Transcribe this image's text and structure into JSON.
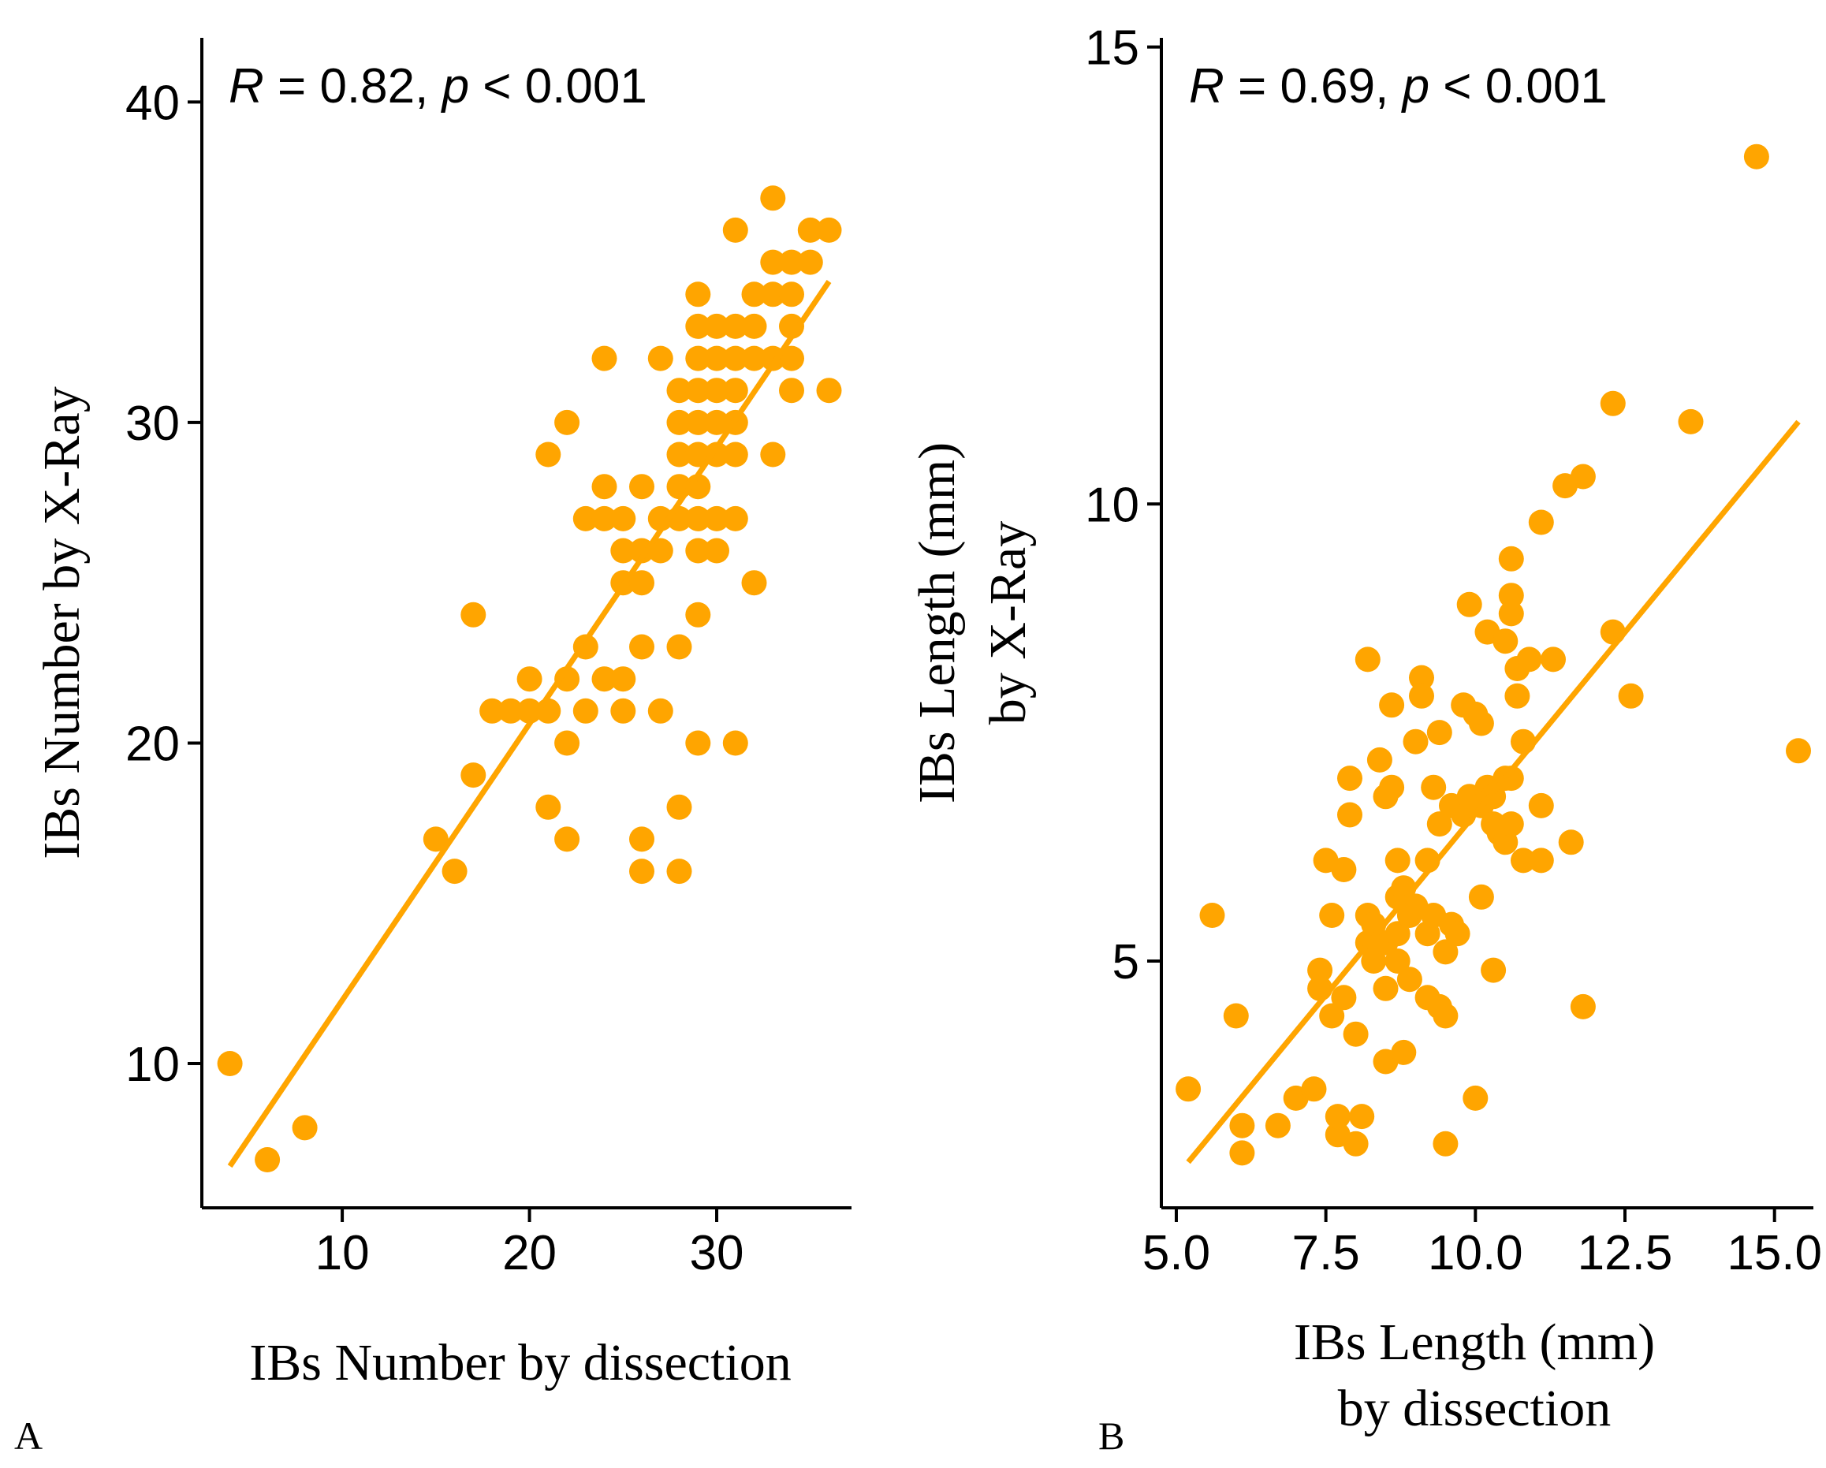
{
  "chart_data": [
    {
      "panel": "A",
      "type": "scatter",
      "xlabel": "IBs Number by dissection",
      "ylabel": "IBs Number by X-Ray",
      "annotation": {
        "r_label": "R",
        "r_text": " = 0.82, ",
        "p_label": "p",
        "p_text": " < 0.001"
      },
      "xlim": [
        2.5,
        37.2
      ],
      "ylim": [
        5.5,
        42
      ],
      "xticks": [
        10,
        20,
        30
      ],
      "yticks": [
        10,
        20,
        30,
        40
      ],
      "point_color": "#FFA500",
      "line_color": "#FFA500",
      "fit_line": {
        "x": [
          4,
          36
        ],
        "y": [
          6.8,
          34.4
        ]
      },
      "points": [
        [
          4,
          10
        ],
        [
          6,
          7
        ],
        [
          8,
          8
        ],
        [
          15,
          17
        ],
        [
          16,
          16
        ],
        [
          17,
          19
        ],
        [
          17,
          24
        ],
        [
          18,
          21
        ],
        [
          19,
          21
        ],
        [
          20,
          21
        ],
        [
          20,
          22
        ],
        [
          21,
          21
        ],
        [
          21,
          29
        ],
        [
          21,
          18
        ],
        [
          22,
          22
        ],
        [
          22,
          20
        ],
        [
          22,
          17
        ],
        [
          22,
          30
        ],
        [
          23,
          21
        ],
        [
          23,
          23
        ],
        [
          23,
          27
        ],
        [
          24,
          22
        ],
        [
          24,
          27
        ],
        [
          24,
          28
        ],
        [
          24,
          32
        ],
        [
          25,
          22
        ],
        [
          25,
          26
        ],
        [
          25,
          25
        ],
        [
          25,
          21
        ],
        [
          25,
          27
        ],
        [
          26,
          26
        ],
        [
          26,
          25
        ],
        [
          26,
          23
        ],
        [
          26,
          28
        ],
        [
          26,
          17
        ],
        [
          26,
          16
        ],
        [
          27,
          26
        ],
        [
          27,
          27
        ],
        [
          27,
          21
        ],
        [
          27,
          32
        ],
        [
          28,
          30
        ],
        [
          28,
          31
        ],
        [
          28,
          29
        ],
        [
          28,
          27
        ],
        [
          28,
          28
        ],
        [
          28,
          23
        ],
        [
          28,
          18
        ],
        [
          28,
          16
        ],
        [
          29,
          34
        ],
        [
          29,
          33
        ],
        [
          29,
          32
        ],
        [
          29,
          31
        ],
        [
          29,
          30
        ],
        [
          29,
          29
        ],
        [
          29,
          28
        ],
        [
          29,
          27
        ],
        [
          29,
          26
        ],
        [
          29,
          24
        ],
        [
          29,
          20
        ],
        [
          30,
          33
        ],
        [
          30,
          32
        ],
        [
          30,
          31
        ],
        [
          30,
          30
        ],
        [
          30,
          29
        ],
        [
          30,
          27
        ],
        [
          30,
          26
        ],
        [
          31,
          36
        ],
        [
          31,
          33
        ],
        [
          31,
          32
        ],
        [
          31,
          31
        ],
        [
          31,
          30
        ],
        [
          31,
          29
        ],
        [
          31,
          27
        ],
        [
          31,
          20
        ],
        [
          32,
          33
        ],
        [
          32,
          32
        ],
        [
          32,
          34
        ],
        [
          32,
          25
        ],
        [
          33,
          37
        ],
        [
          33,
          35
        ],
        [
          33,
          34
        ],
        [
          33,
          32
        ],
        [
          33,
          29
        ],
        [
          34,
          35
        ],
        [
          34,
          34
        ],
        [
          34,
          33
        ],
        [
          34,
          32
        ],
        [
          34,
          31
        ],
        [
          35,
          36
        ],
        [
          35,
          35
        ],
        [
          36,
          36
        ],
        [
          36,
          31
        ]
      ]
    },
    {
      "panel": "B",
      "type": "scatter",
      "xlabel": "IBs Length (mm) by dissection",
      "ylabel": "IBs Length (mm) by X-Ray",
      "xlabel_lines": [
        "IBs Length (mm)",
        "by dissection"
      ],
      "ylabel_lines": [
        "IBs Length (mm)",
        "by X-Ray"
      ],
      "annotation": {
        "r_label": "R",
        "r_text": " = 0.69, ",
        "p_label": "p",
        "p_text": " < 0.001"
      },
      "xlim": [
        4.75,
        15.65
      ],
      "ylim": [
        2.3,
        15.1
      ],
      "xticks": [
        5.0,
        7.5,
        10.0,
        12.5,
        15.0
      ],
      "xtick_labels": [
        "5.0",
        "7.5",
        "10.0",
        "12.5",
        "15.0"
      ],
      "yticks": [
        5,
        10,
        15
      ],
      "point_color": "#FFA500",
      "line_color": "#FFA500",
      "fit_line": {
        "x": [
          5.2,
          15.4
        ],
        "y": [
          2.8,
          10.9
        ]
      },
      "points": [
        [
          5.2,
          3.6
        ],
        [
          5.6,
          5.5
        ],
        [
          6.0,
          4.4
        ],
        [
          6.1,
          3.2
        ],
        [
          6.1,
          2.9
        ],
        [
          6.7,
          3.2
        ],
        [
          7.0,
          3.5
        ],
        [
          7.3,
          3.6
        ],
        [
          7.4,
          4.9
        ],
        [
          7.4,
          4.7
        ],
        [
          7.5,
          6.1
        ],
        [
          7.6,
          4.4
        ],
        [
          7.6,
          5.5
        ],
        [
          7.7,
          3.1
        ],
        [
          7.7,
          3.3
        ],
        [
          7.8,
          6.0
        ],
        [
          7.8,
          4.6
        ],
        [
          7.9,
          7.0
        ],
        [
          7.9,
          6.6
        ],
        [
          8.0,
          3.0
        ],
        [
          8.0,
          4.2
        ],
        [
          8.1,
          3.3
        ],
        [
          8.2,
          8.3
        ],
        [
          8.2,
          5.2
        ],
        [
          8.2,
          5.5
        ],
        [
          8.3,
          5.4
        ],
        [
          8.3,
          5.0
        ],
        [
          8.4,
          7.2
        ],
        [
          8.5,
          6.8
        ],
        [
          8.5,
          5.2
        ],
        [
          8.5,
          4.7
        ],
        [
          8.5,
          3.9
        ],
        [
          8.6,
          7.8
        ],
        [
          8.6,
          6.9
        ],
        [
          8.7,
          6.1
        ],
        [
          8.7,
          5.7
        ],
        [
          8.7,
          5.3
        ],
        [
          8.7,
          5.0
        ],
        [
          8.8,
          5.8
        ],
        [
          8.8,
          4.0
        ],
        [
          8.9,
          5.5
        ],
        [
          8.9,
          4.8
        ],
        [
          9.0,
          7.4
        ],
        [
          9.0,
          5.6
        ],
        [
          9.1,
          8.1
        ],
        [
          9.1,
          7.9
        ],
        [
          9.2,
          6.1
        ],
        [
          9.2,
          5.3
        ],
        [
          9.2,
          4.6
        ],
        [
          9.3,
          6.9
        ],
        [
          9.3,
          5.5
        ],
        [
          9.4,
          7.5
        ],
        [
          9.4,
          6.5
        ],
        [
          9.4,
          4.5
        ],
        [
          9.5,
          5.1
        ],
        [
          9.5,
          4.4
        ],
        [
          9.5,
          3.0
        ],
        [
          9.6,
          6.7
        ],
        [
          9.6,
          5.4
        ],
        [
          9.7,
          5.3
        ],
        [
          9.8,
          7.8
        ],
        [
          9.8,
          6.6
        ],
        [
          9.9,
          8.9
        ],
        [
          9.9,
          6.8
        ],
        [
          10.0,
          3.5
        ],
        [
          10.0,
          7.7
        ],
        [
          10.1,
          7.6
        ],
        [
          10.1,
          6.7
        ],
        [
          10.1,
          5.7
        ],
        [
          10.2,
          8.6
        ],
        [
          10.2,
          6.9
        ],
        [
          10.3,
          6.8
        ],
        [
          10.3,
          6.5
        ],
        [
          10.3,
          4.9
        ],
        [
          10.4,
          6.4
        ],
        [
          10.5,
          8.5
        ],
        [
          10.5,
          7.0
        ],
        [
          10.5,
          6.3
        ],
        [
          10.6,
          9.4
        ],
        [
          10.6,
          9.0
        ],
        [
          10.6,
          8.8
        ],
        [
          10.6,
          7.0
        ],
        [
          10.6,
          6.5
        ],
        [
          10.7,
          8.2
        ],
        [
          10.7,
          7.9
        ],
        [
          10.8,
          7.4
        ],
        [
          10.8,
          6.1
        ],
        [
          10.9,
          8.3
        ],
        [
          11.1,
          9.8
        ],
        [
          11.1,
          6.7
        ],
        [
          11.1,
          6.1
        ],
        [
          11.3,
          8.3
        ],
        [
          11.5,
          10.2
        ],
        [
          11.6,
          6.3
        ],
        [
          11.8,
          10.3
        ],
        [
          11.8,
          4.5
        ],
        [
          12.3,
          11.1
        ],
        [
          12.3,
          8.6
        ],
        [
          12.6,
          7.9
        ],
        [
          13.6,
          10.9
        ],
        [
          14.7,
          13.8
        ],
        [
          15.4,
          7.3
        ]
      ]
    }
  ],
  "panel_labels": {
    "a": "A",
    "b": "B"
  }
}
